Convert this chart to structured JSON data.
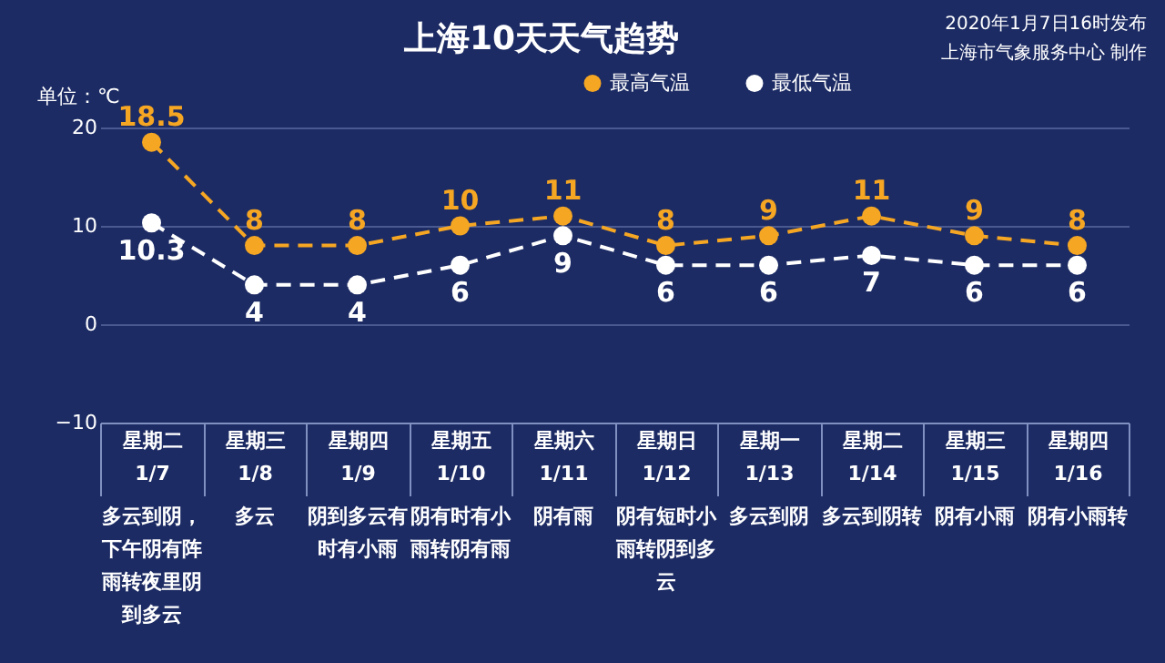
{
  "chart_data": {
    "type": "line",
    "title": "上海10天天气趋势",
    "ylabel": "单位：℃",
    "categories": [
      "星期二\n1/7",
      "星期三\n1/8",
      "星期四\n1/9",
      "星期五\n1/10",
      "星期六\n1/11",
      "星期日\n1/12",
      "星期一\n1/13",
      "星期二\n1/14",
      "星期三\n1/15",
      "星期四\n1/16"
    ],
    "series": [
      {
        "name": "最高气温",
        "color": "#f5a623",
        "values": [
          18.5,
          8,
          8,
          10,
          11,
          8,
          9,
          11,
          9,
          8
        ]
      },
      {
        "name": "最低气温",
        "color": "#ffffff",
        "values": [
          10.3,
          4,
          4,
          6,
          9,
          6,
          6,
          7,
          6,
          6
        ]
      }
    ],
    "ylim": [
      -10,
      20
    ],
    "yticks": [
      -10,
      0,
      10,
      20
    ],
    "grid": "y",
    "legend": "top",
    "marker": "circle",
    "line_style": "dashed",
    "data_labels": true,
    "annotations": [
      "2020年1月7日16时发布",
      "上海市气象服务中心 制作",
      "多云到阴，下午阴有阵雨转夜里阴到多云",
      "多云",
      "阴到多云有时有小雨",
      "阴有时有小雨转阴有雨",
      "阴有雨",
      "阴有短时小雨转阴到多云",
      "多云到阴",
      "多云到阴转",
      "阴有小雨",
      "阴有小雨转"
    ]
  }
}
